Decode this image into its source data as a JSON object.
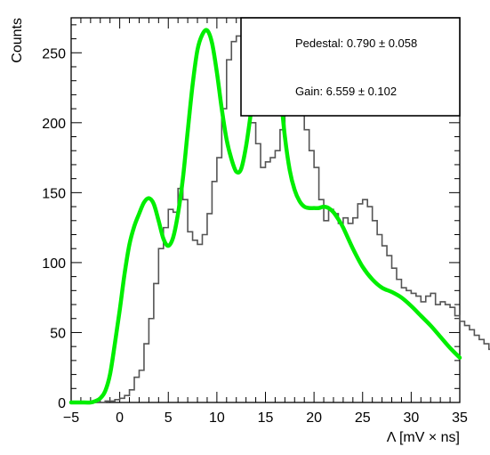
{
  "chart_data": {
    "type": "line",
    "xlabel": "Λ [mV × ns]",
    "ylabel": "Counts",
    "xlim": [
      -5,
      35
    ],
    "ylim": [
      0,
      275
    ],
    "x_ticks": [
      -5,
      0,
      5,
      10,
      15,
      20,
      25,
      30,
      35
    ],
    "x_tick_labels": [
      "−5",
      "0",
      "5",
      "10",
      "15",
      "20",
      "25",
      "30",
      "35"
    ],
    "y_ticks": [
      0,
      50,
      100,
      150,
      200,
      250
    ],
    "y_tick_labels": [
      "0",
      "50",
      "100",
      "150",
      "200",
      "250"
    ],
    "grid": false,
    "stats_box": {
      "placement": "top-right",
      "lines": [
        "Pedestal: 0.790 ± 0.058",
        "Gain: 6.559 ± 0.102"
      ]
    },
    "series": [
      {
        "kind": "histogram",
        "color": "#555555",
        "bin_edges_start": -5,
        "bin_width": 0.5,
        "counts": [
          0,
          0,
          0,
          0,
          0,
          0,
          0,
          1,
          1,
          2,
          3,
          5,
          9,
          18,
          23,
          42,
          60,
          85,
          110,
          125,
          138,
          136,
          153,
          145,
          122,
          116,
          113,
          120,
          135,
          158,
          175,
          210,
          245,
          258,
          262,
          246,
          223,
          200,
          185,
          168,
          172,
          175,
          180,
          195,
          225,
          230,
          225,
          210,
          195,
          180,
          168,
          145,
          130,
          138,
          135,
          128,
          132,
          128,
          132,
          142,
          145,
          140,
          130,
          120,
          112,
          105,
          96,
          88,
          82,
          80,
          78,
          76,
          72,
          76,
          78,
          70,
          72,
          70,
          68,
          62,
          58,
          55,
          52,
          48,
          45,
          42,
          38,
          34,
          35,
          41,
          33
        ]
      },
      {
        "kind": "fit",
        "color": "#00ee00",
        "x": [
          -5,
          -4,
          -3,
          -2.5,
          -2,
          -1.5,
          -1,
          -0.5,
          0,
          0.5,
          1,
          1.5,
          2,
          2.5,
          3,
          3.5,
          4,
          4.5,
          5,
          5.5,
          6,
          6.5,
          7,
          7.5,
          8,
          8.5,
          9,
          9.5,
          10,
          10.5,
          11,
          11.5,
          12,
          12.5,
          13,
          13.5,
          14,
          14.5,
          15,
          15.5,
          16,
          16.5,
          17,
          17.5,
          18,
          18.5,
          19,
          19.5,
          20,
          20.5,
          21,
          21.5,
          22,
          22.5,
          23,
          24,
          25,
          26,
          27,
          28,
          29,
          30,
          31,
          32,
          33,
          34,
          35
        ],
        "y": [
          0,
          0,
          0,
          1,
          3,
          8,
          20,
          42,
          66,
          92,
          113,
          126,
          135,
          143,
          146,
          142,
          130,
          117,
          112,
          118,
          135,
          160,
          194,
          227,
          252,
          263,
          266,
          257,
          236,
          210,
          188,
          174,
          165,
          167,
          183,
          207,
          232,
          250,
          262,
          263,
          250,
          224,
          190,
          166,
          152,
          144,
          140,
          139,
          139,
          139,
          140,
          139,
          136,
          131,
          125,
          110,
          97,
          88,
          82,
          79,
          75,
          69,
          62,
          55,
          47,
          39,
          32
        ]
      }
    ]
  }
}
